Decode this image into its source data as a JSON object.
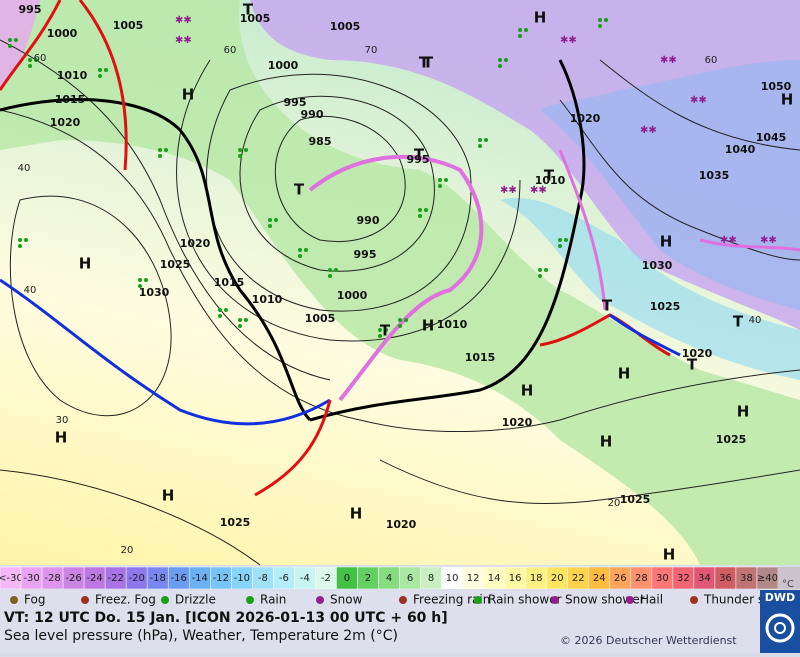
{
  "map": {
    "pressure_labels": [
      "995",
      "1000",
      "1005",
      "1010",
      "1015",
      "1020",
      "1005",
      "1005",
      "1000",
      "995",
      "990",
      "985",
      "995",
      "990",
      "995",
      "1000",
      "1005",
      "1010",
      "1015",
      "1020",
      "1025",
      "1030",
      "1010",
      "1015",
      "1020",
      "1020",
      "1010",
      "1030",
      "1025",
      "1020",
      "1025",
      "1025",
      "1020",
      "1025",
      "1035",
      "1040",
      "1045",
      "1050"
    ],
    "isotherm_labels": [
      "60",
      "70",
      "60",
      "40",
      "40",
      "30",
      "20",
      "60",
      "40",
      "20"
    ],
    "high_labels": [
      "H",
      "H",
      "H",
      "H",
      "H",
      "H",
      "H",
      "H",
      "H",
      "H",
      "H",
      "H",
      "H",
      "H"
    ],
    "low_labels": [
      "T",
      "T",
      "T",
      "T",
      "T",
      "T",
      "T",
      "T",
      "T",
      "T"
    ]
  },
  "temperature_scale": {
    "unit": "°C",
    "steps": [
      {
        "label": "<-30",
        "color": "#f4b8f8"
      },
      {
        "label": "-30",
        "color": "#e8a4f0"
      },
      {
        "label": "-28",
        "color": "#dc94ec"
      },
      {
        "label": "-26",
        "color": "#cc84e4"
      },
      {
        "label": "-24",
        "color": "#bc78e0"
      },
      {
        "label": "-22",
        "color": "#a874e4"
      },
      {
        "label": "-20",
        "color": "#8c78ec"
      },
      {
        "label": "-18",
        "color": "#7888f0"
      },
      {
        "label": "-16",
        "color": "#6c9cf0"
      },
      {
        "label": "-14",
        "color": "#6cb0f4"
      },
      {
        "label": "-12",
        "color": "#78c4f8"
      },
      {
        "label": "-10",
        "color": "#88d4f8"
      },
      {
        "label": "-8",
        "color": "#a0e0f8"
      },
      {
        "label": "-6",
        "color": "#b4ecf8"
      },
      {
        "label": "-4",
        "color": "#c8f4f4"
      },
      {
        "label": "-2",
        "color": "#dcf8ec"
      },
      {
        "label": "0",
        "color": "#44c044"
      },
      {
        "label": "2",
        "color": "#64d064"
      },
      {
        "label": "4",
        "color": "#88dc80"
      },
      {
        "label": "6",
        "color": "#a8e8a0"
      },
      {
        "label": "8",
        "color": "#c8f0c0"
      },
      {
        "label": "10",
        "color": "#ffffff"
      },
      {
        "label": "12",
        "color": "#ffffe0"
      },
      {
        "label": "14",
        "color": "#fffcc4"
      },
      {
        "label": "16",
        "color": "#fff8a4"
      },
      {
        "label": "18",
        "color": "#fff084"
      },
      {
        "label": "20",
        "color": "#ffe460"
      },
      {
        "label": "22",
        "color": "#ffd44c"
      },
      {
        "label": "24",
        "color": "#ffbc40"
      },
      {
        "label": "26",
        "color": "#ffa45c"
      },
      {
        "label": "28",
        "color": "#ff9070"
      },
      {
        "label": "30",
        "color": "#ff7474"
      },
      {
        "label": "32",
        "color": "#f06474"
      },
      {
        "label": "34",
        "color": "#e05874"
      },
      {
        "label": "36",
        "color": "#d05c64"
      },
      {
        "label": "38",
        "color": "#c07474"
      },
      {
        "label": "≥40",
        "color": "#b08888"
      }
    ]
  },
  "legend": [
    "Fog",
    "Freez. Fog",
    "Drizzle",
    "Rain",
    "Snow",
    "Freezing rain",
    "Rain shower",
    "Snow shower",
    "Hail",
    "Thunder storm"
  ],
  "footer": {
    "valid_time": "VT: 12 UTC Do.  15 Jan. [ICON 2026-01-13  00 UTC + 60 h]",
    "description": "Sea level pressure (hPa), Weather, Temperature 2m (°C)",
    "copyright": "© 2026 Deutscher Wetterdienst",
    "logo": "DWD"
  }
}
